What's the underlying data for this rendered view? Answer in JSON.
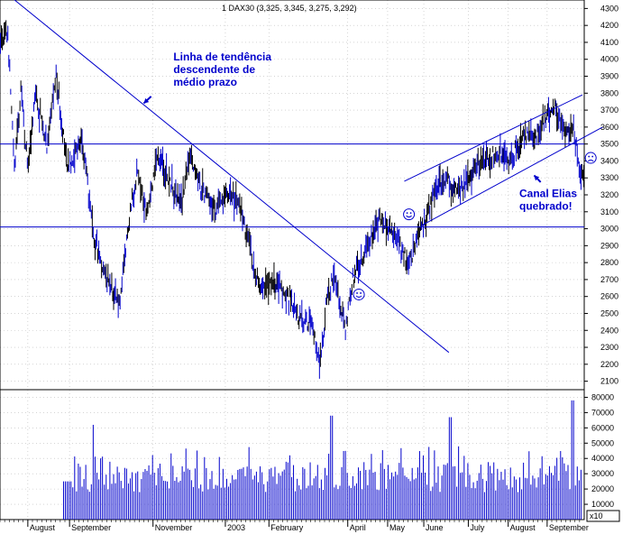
{
  "chart_data": {
    "type": "ohlc",
    "title": "1 DAX30 (3,325, 3,345, 3,275, 3,292)",
    "price_axis": {
      "ylim": [
        2050,
        4350
      ],
      "ticks": [
        2100,
        2200,
        2300,
        2400,
        2500,
        2600,
        2700,
        2800,
        2900,
        3000,
        3100,
        3200,
        3300,
        3400,
        3500,
        3600,
        3700,
        3800,
        3900,
        4000,
        4100,
        4200,
        4300
      ]
    },
    "volume_axis": {
      "ylim": [
        0,
        85000
      ],
      "ticks": [
        10000,
        20000,
        30000,
        40000,
        50000,
        60000,
        70000,
        80000
      ],
      "multiplier_label": "x10"
    },
    "x_axis": {
      "labels": [
        "August",
        "September",
        "November",
        "2003",
        "February",
        "April",
        "May",
        "June",
        "July",
        "August",
        "September"
      ],
      "bar_index": [
        30,
        75,
        165,
        243,
        290,
        375,
        418,
        457,
        505,
        548,
        590
      ],
      "n_bars": 630
    },
    "price_path": [
      [
        0,
        4100
      ],
      [
        8,
        4150
      ],
      [
        15,
        3350
      ],
      [
        22,
        3800
      ],
      [
        30,
        3350
      ],
      [
        38,
        3800
      ],
      [
        50,
        3500
      ],
      [
        60,
        3900
      ],
      [
        72,
        3350
      ],
      [
        88,
        3550
      ],
      [
        100,
        2950
      ],
      [
        112,
        2750
      ],
      [
        128,
        2550
      ],
      [
        140,
        3100
      ],
      [
        148,
        3350
      ],
      [
        158,
        3100
      ],
      [
        170,
        3450
      ],
      [
        180,
        3300
      ],
      [
        195,
        3150
      ],
      [
        205,
        3450
      ],
      [
        215,
        3250
      ],
      [
        232,
        3100
      ],
      [
        245,
        3200
      ],
      [
        258,
        3150
      ],
      [
        268,
        2900
      ],
      [
        280,
        2650
      ],
      [
        295,
        2700
      ],
      [
        310,
        2600
      ],
      [
        325,
        2450
      ],
      [
        335,
        2450
      ],
      [
        345,
        2200
      ],
      [
        352,
        2600
      ],
      [
        360,
        2700
      ],
      [
        372,
        2400
      ],
      [
        380,
        2700
      ],
      [
        395,
        2900
      ],
      [
        410,
        3050
      ],
      [
        425,
        2950
      ],
      [
        440,
        2800
      ],
      [
        455,
        3000
      ],
      [
        470,
        3250
      ],
      [
        482,
        3300
      ],
      [
        492,
        3200
      ],
      [
        505,
        3300
      ],
      [
        520,
        3400
      ],
      [
        535,
        3450
      ],
      [
        550,
        3400
      ],
      [
        565,
        3550
      ],
      [
        578,
        3550
      ],
      [
        588,
        3650
      ],
      [
        598,
        3700
      ],
      [
        610,
        3550
      ],
      [
        618,
        3600
      ],
      [
        625,
        3300
      ],
      [
        630,
        3300
      ]
    ],
    "volume_spikes": [
      [
        100,
        62000
      ],
      [
        357,
        68000
      ],
      [
        485,
        67000
      ],
      [
        617,
        78000
      ]
    ],
    "lines": [
      {
        "kind": "horizontal",
        "value": 3500
      },
      {
        "kind": "horizontal",
        "value": 3010
      },
      {
        "kind": "trendline",
        "from": [
          0,
          4420
        ],
        "to": [
          484,
          2270
        ]
      },
      {
        "kind": "channel",
        "from": [
          436,
          3280
        ],
        "to": [
          628,
          3790
        ]
      },
      {
        "kind": "channel",
        "from": [
          455,
          3020
        ],
        "to": [
          650,
          3600
        ]
      }
    ],
    "annotations": [
      {
        "lines": [
          "Linha de tendência",
          "descendente de",
          "médio prazo"
        ],
        "anchor": [
          187,
          3993
        ]
      },
      {
        "lines": [
          "Canal Elias",
          "quebrado!"
        ],
        "anchor": [
          560,
          3188
        ]
      }
    ],
    "markers": [
      {
        "type": "smiley",
        "at": [
          441,
          3085
        ]
      },
      {
        "type": "smiley",
        "at": [
          387,
          2612
        ]
      },
      {
        "type": "frowny",
        "at": [
          637,
          3418
        ]
      }
    ],
    "arrows": [
      {
        "from": [
          163,
          3781
        ],
        "to": [
          155,
          3740
        ]
      },
      {
        "from": [
          583,
          3275
        ],
        "to": [
          576,
          3315
        ]
      }
    ],
    "colors": {
      "price": "#000000",
      "volume": "#0000cc",
      "lines": "#0000cc",
      "annotation": "#0000cc",
      "marker": "#0000cc"
    }
  }
}
